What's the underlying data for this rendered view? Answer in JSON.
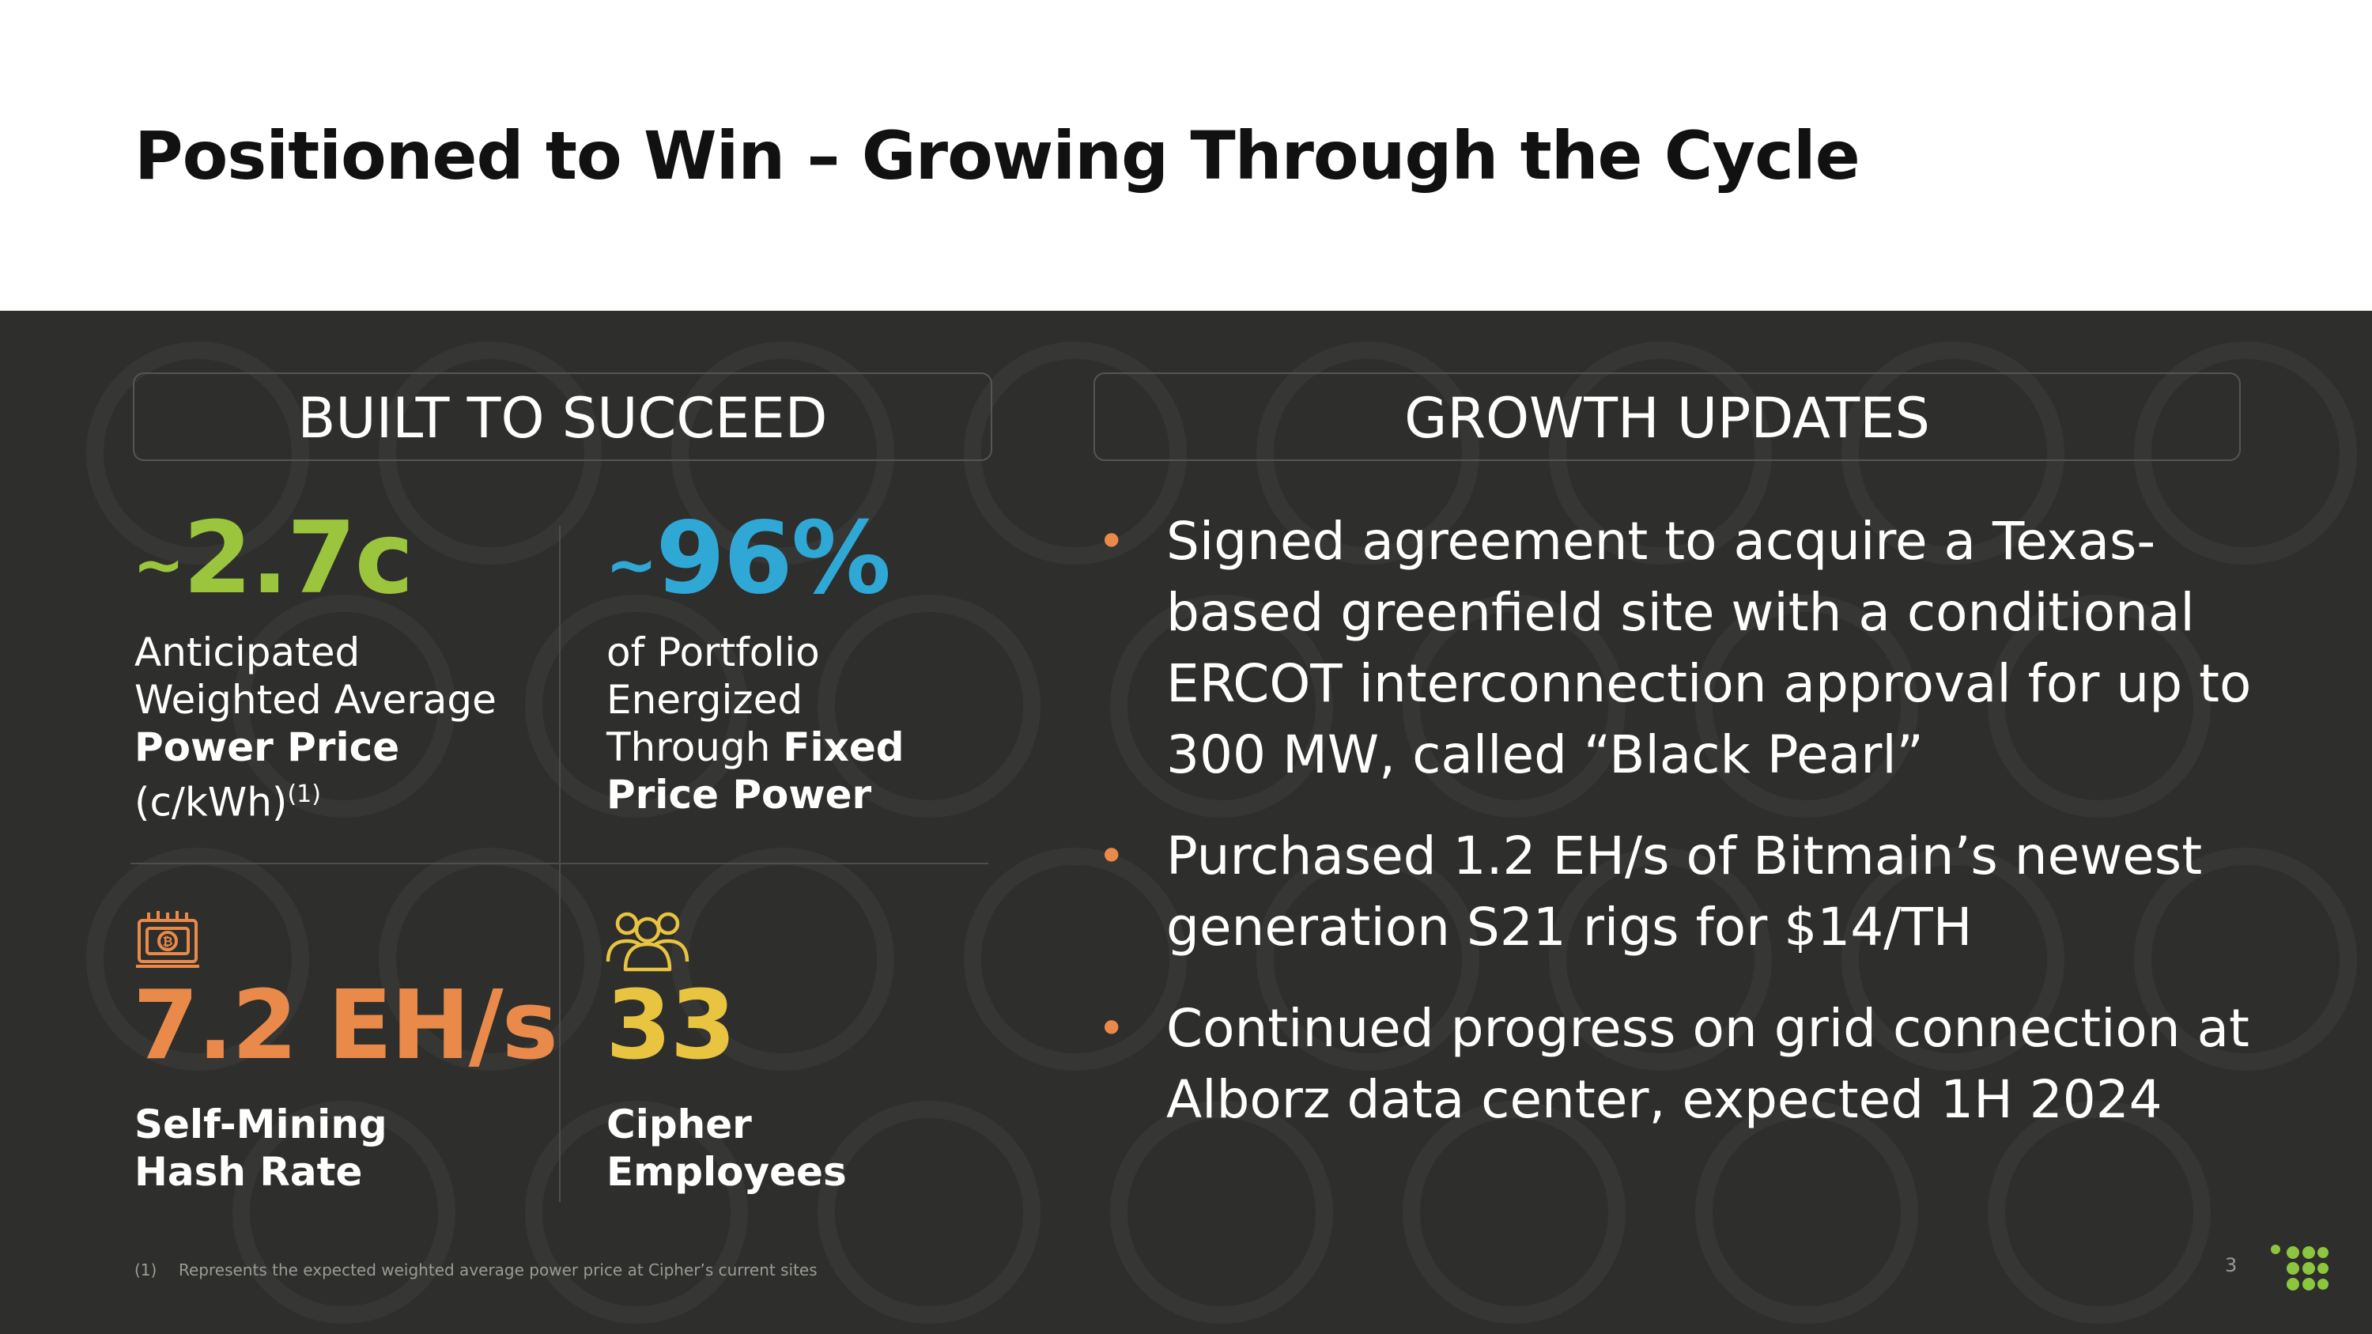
{
  "title": "Positioned to Win – Growing Through the Cycle",
  "left_header": "BUILT TO SUCCEED",
  "right_header": "GROWTH UPDATES",
  "stats": {
    "power": {
      "prefix": "~",
      "value": "2.7c",
      "desc_line1": "Anticipated",
      "desc_line2": "Weighted Average",
      "desc_bold": "Power Price",
      "desc_line4": "(c/kWh)",
      "footnote_marker": "(1)",
      "color": "#9bc53d"
    },
    "portfolio": {
      "prefix": "~",
      "value": "96%",
      "desc_line1": "of Portfolio",
      "desc_line2": "Energized",
      "desc_line3_normal": "Through ",
      "desc_line3_bold": "Fixed",
      "desc_line4_bold": "Price Power",
      "color": "#2fa8d6"
    },
    "hashrate": {
      "value": "7.2 EH/s",
      "desc_line1": "Self-Mining",
      "desc_line2": "Hash Rate",
      "icon": "mining-rig-icon",
      "color": "#e98a4a"
    },
    "employees": {
      "value": "33",
      "desc_line1": "Cipher",
      "desc_line2": "Employees",
      "icon": "people-group-icon",
      "color": "#e8c440"
    }
  },
  "growth_updates": [
    "Signed agreement to acquire a Texas-based greenfield site with a conditional ERCOT interconnection approval for up to 300 MW, called “Black Pearl”",
    "Purchased 1.2 EH/s of Bitmain’s newest generation S21 rigs for $14/TH",
    "Continued progress on grid connection at Alborz data center, expected 1H 2024"
  ],
  "bullet_char": "•",
  "footnote": {
    "marker": "(1)",
    "text": "Represents the expected weighted average power price at Cipher’s current sites"
  },
  "page_number": "3",
  "logo_color": "#8cc63f"
}
